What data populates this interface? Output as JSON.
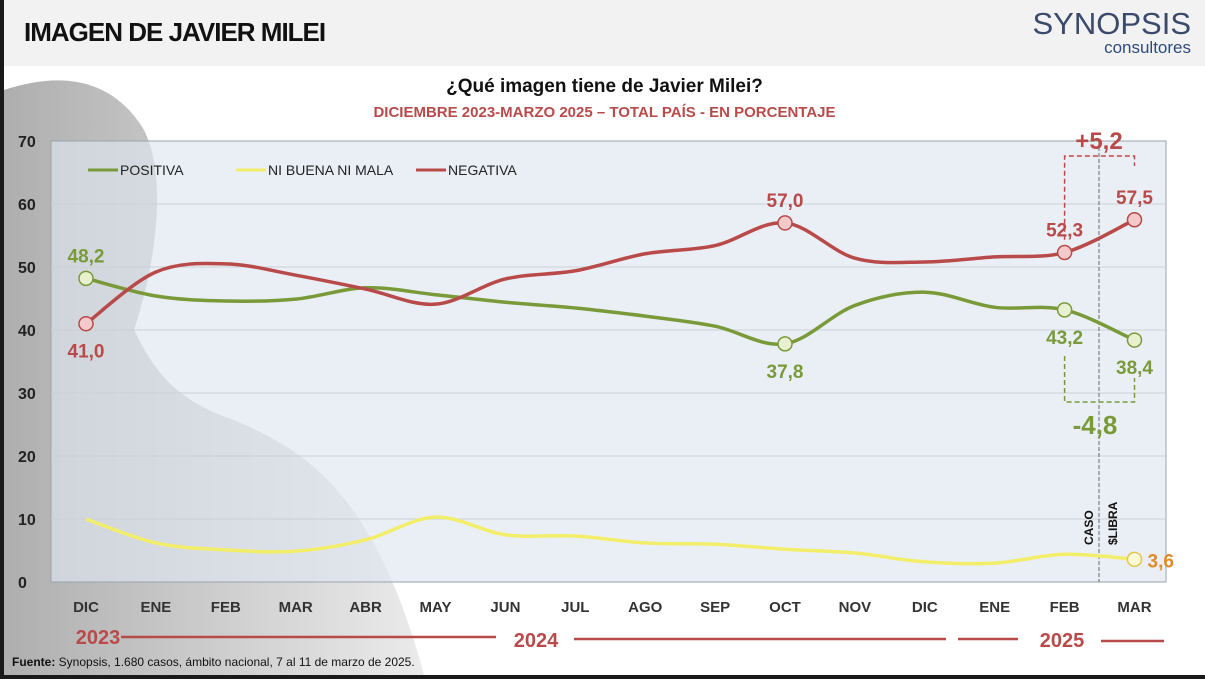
{
  "header": {
    "title": "IMAGEN DE JAVIER MILEI",
    "logo_name": "SYNOPSIS",
    "logo_sub": "consultores"
  },
  "chart_data": {
    "type": "line",
    "title": "¿Qué imagen tiene de Javier Milei?",
    "subtitle": "DICIEMBRE 2023-MARZO 2025 – TOTAL PAÍS - EN PORCENTAJE",
    "categories": [
      "DIC",
      "ENE",
      "FEB",
      "MAR",
      "ABR",
      "MAY",
      "JUN",
      "JUL",
      "AGO",
      "SEP",
      "OCT",
      "NOV",
      "DIC",
      "ENE",
      "FEB",
      "MAR"
    ],
    "years": [
      "2023",
      "2024",
      "2025"
    ],
    "ylim": [
      0,
      70
    ],
    "yticks": [
      0,
      10,
      20,
      30,
      40,
      50,
      60,
      70
    ],
    "grid": true,
    "legend_position": "top-left",
    "series": [
      {
        "name": "POSITIVA",
        "color": "#7a9a3a",
        "values": [
          48.2,
          45.4,
          44.6,
          44.9,
          46.7,
          45.6,
          44.4,
          43.5,
          42.2,
          40.6,
          37.8,
          43.9,
          46.0,
          43.6,
          43.2,
          38.4
        ]
      },
      {
        "name": "NI BUENA NI MALA",
        "color": "#f2ee6a",
        "values": [
          10.0,
          6.2,
          5.1,
          4.9,
          6.7,
          10.3,
          7.5,
          7.3,
          6.2,
          6.0,
          5.2,
          4.6,
          3.2,
          3.0,
          4.4,
          3.6
        ]
      },
      {
        "name": "NEGATIVA",
        "color": "#b94a4a",
        "values": [
          41.0,
          49.2,
          50.5,
          48.7,
          46.5,
          44.1,
          48.1,
          49.4,
          52.1,
          53.4,
          57.0,
          51.4,
          50.8,
          51.6,
          52.3,
          57.5
        ]
      }
    ],
    "data_labels": [
      {
        "series": 0,
        "index": 0,
        "text": "48,2",
        "pos": "above"
      },
      {
        "series": 0,
        "index": 10,
        "text": "37,8",
        "pos": "below"
      },
      {
        "series": 0,
        "index": 14,
        "text": "43,2",
        "pos": "below"
      },
      {
        "series": 0,
        "index": 15,
        "text": "38,4",
        "pos": "below"
      },
      {
        "series": 2,
        "index": 0,
        "text": "41,0",
        "pos": "below"
      },
      {
        "series": 2,
        "index": 10,
        "text": "57,0",
        "pos": "above"
      },
      {
        "series": 2,
        "index": 14,
        "text": "52,3",
        "pos": "above"
      },
      {
        "series": 2,
        "index": 15,
        "text": "57,5",
        "pos": "above"
      },
      {
        "series": 1,
        "index": 15,
        "text": "3,6",
        "pos": "right"
      }
    ],
    "annotations": {
      "negative_change": "+5,2",
      "positive_change": "-4,8",
      "event_line": [
        "CASO",
        "$LIBRA"
      ]
    }
  },
  "footer": {
    "label": "Fuente:",
    "text": " Synopsis, 1.680 casos, ámbito nacional, 7 al 11 de marzo de 2025."
  }
}
